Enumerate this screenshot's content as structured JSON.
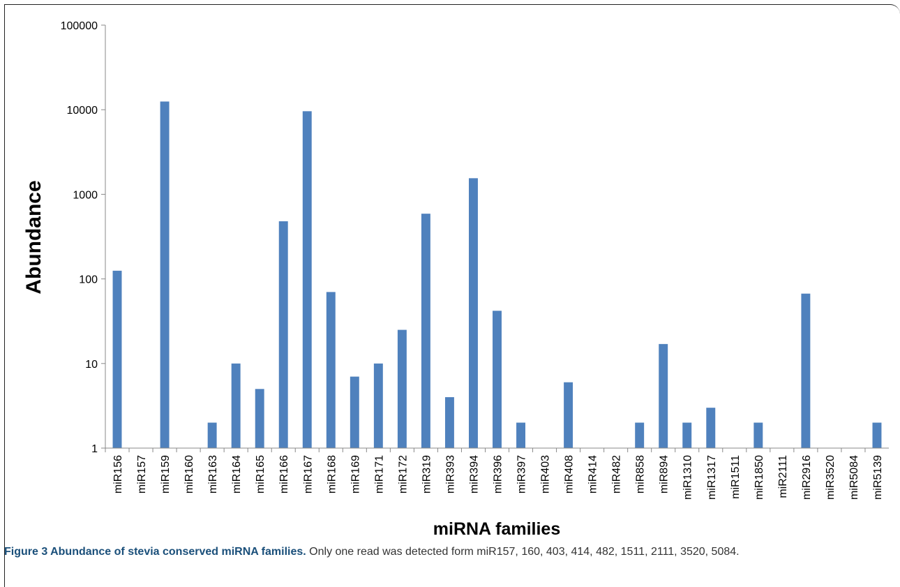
{
  "chart_data": {
    "type": "bar",
    "xlabel": "miRNA families",
    "ylabel": "Abundance",
    "y_scale": "log",
    "ylim": [
      1,
      100000
    ],
    "y_ticks": [
      "1",
      "10",
      "100",
      "1000",
      "10000",
      "100000"
    ],
    "grid": false,
    "bar_color": "#4f81bd",
    "categories": [
      "miR156",
      "miR157",
      "miR159",
      "miR160",
      "miR163",
      "miR164",
      "miR165",
      "miR166",
      "miR167",
      "miR168",
      "miR169",
      "miR171",
      "miR172",
      "miR319",
      "miR393",
      "miR394",
      "miR396",
      "miR397",
      "miR403",
      "miR408",
      "miR414",
      "miR482",
      "miR858",
      "miR894",
      "miR1310",
      "miR1317",
      "miR1511",
      "miR1850",
      "miR2111",
      "miR2916",
      "miR3520",
      "miR5084",
      "miR5139"
    ],
    "values": [
      125,
      1,
      12500,
      1,
      2,
      10,
      5,
      480,
      9600,
      70,
      7,
      10,
      25,
      590,
      4,
      1550,
      42,
      2,
      1,
      6,
      1,
      1,
      2,
      17,
      2,
      3,
      1,
      2,
      1,
      67,
      1,
      1,
      2
    ]
  },
  "caption": {
    "title": "Figure 3 Abundance of stevia conserved miRNA families.",
    "text": " Only one read was detected form miR157, 160, 403, 414, 482, 1511, 2111, 3520, 5084."
  }
}
